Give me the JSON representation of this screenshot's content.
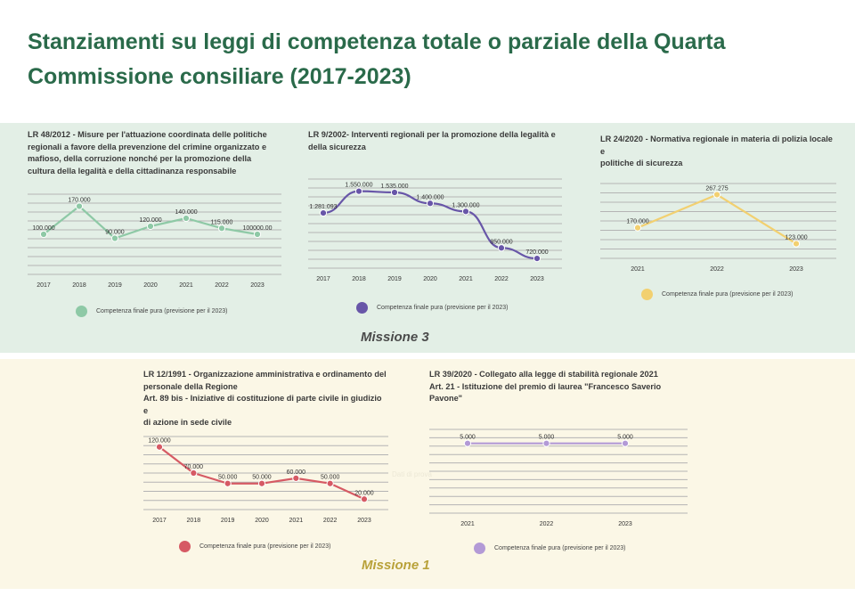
{
  "page_title": "Stanziamenti su leggi di competenza totale o parziale della Quarta Commissione consiliare (2017-2023)",
  "missions": {
    "m3": "Missione 3",
    "m1": "Missione 1"
  },
  "watermark": "Dati di prova",
  "chart_data": [
    {
      "id": "c1",
      "type": "line",
      "title": "LR 48/2012 - Misure per l'attuazione coordinata delle politiche\nregionali a favore della prevenzione del crimine organizzato e\nmafioso, della corruzione nonché per la promozione della\ncultura della legalità e della cittadinanza responsabile",
      "categories": [
        "2017",
        "2018",
        "2019",
        "2020",
        "2021",
        "2022",
        "2023"
      ],
      "values": [
        100000,
        170000,
        90000,
        120000,
        140000,
        115000,
        100000
      ],
      "labels": [
        "100.000",
        "170.000",
        "90.000",
        "120.000",
        "140.000",
        "115.000",
        "100000.00"
      ],
      "ylim": [
        0,
        200000
      ],
      "legend": "Competenza finale pura  (previsione per il 2023)",
      "color": "#8ec9a6"
    },
    {
      "id": "c2",
      "type": "line",
      "title": "LR 9/2002- Interventi regionali per la promozione della legalità e\ndella sicurezza",
      "categories": [
        "2017",
        "2018",
        "2019",
        "2020",
        "2021",
        "2022",
        "2023"
      ],
      "values": [
        1281093,
        1550000,
        1535000,
        1400000,
        1300000,
        850000,
        720000
      ],
      "labels": [
        "1.281.093",
        "1.550.000",
        "1.535.000",
        "1.400.000",
        "1.300.000",
        "850.000",
        "720.000"
      ],
      "ylim": [
        600000,
        1700000
      ],
      "legend": "Competenza finale pura  (previsione per il 2023)",
      "color": "#6856a8"
    },
    {
      "id": "c3",
      "type": "line",
      "title": "LR 24/2020 - Normativa regionale in materia di polizia locale e\npolitiche di sicurezza",
      "categories": [
        "2021",
        "2022",
        "2023"
      ],
      "values": [
        170000,
        267275,
        123000
      ],
      "labels": [
        "170.000",
        "267.275",
        "123.000"
      ],
      "ylim": [
        80000,
        300000
      ],
      "legend": "Competenza finale pura  (previsione per il 2023)",
      "color": "#f2d070"
    },
    {
      "id": "c4",
      "type": "line",
      "title": "LR 12/1991 - Organizzazione amministrativa e ordinamento del\npersonale della Regione\nArt. 89 bis - Iniziative di costituzione di parte civile in giudizio e\ndi azione in sede civile",
      "categories": [
        "2017",
        "2018",
        "2019",
        "2020",
        "2021",
        "2022",
        "2023"
      ],
      "values": [
        120000,
        70000,
        50000,
        50000,
        60000,
        50000,
        20000
      ],
      "labels": [
        "120.000",
        "70.000",
        "50.000",
        "50.000",
        "60.000",
        "50.000",
        "20.000"
      ],
      "ylim": [
        0,
        140000
      ],
      "legend": "Competenza finale pura  (previsione per il 2023)",
      "color": "#d65a64"
    },
    {
      "id": "c5",
      "type": "line",
      "title": "LR 39/2020 - Collegato alla legge di stabilità regionale 2021\nArt. 21 - Istituzione del premio di laurea \"Francesco Saverio Pavone\"",
      "categories": [
        "2021",
        "2022",
        "2023"
      ],
      "values": [
        5000,
        5000,
        5000
      ],
      "labels": [
        "5.000",
        "5.000",
        "5.000"
      ],
      "ylim": [
        0,
        6000
      ],
      "legend": "Competenza finale pura  (previsione per il 2023)",
      "color": "#b39ad6"
    }
  ]
}
